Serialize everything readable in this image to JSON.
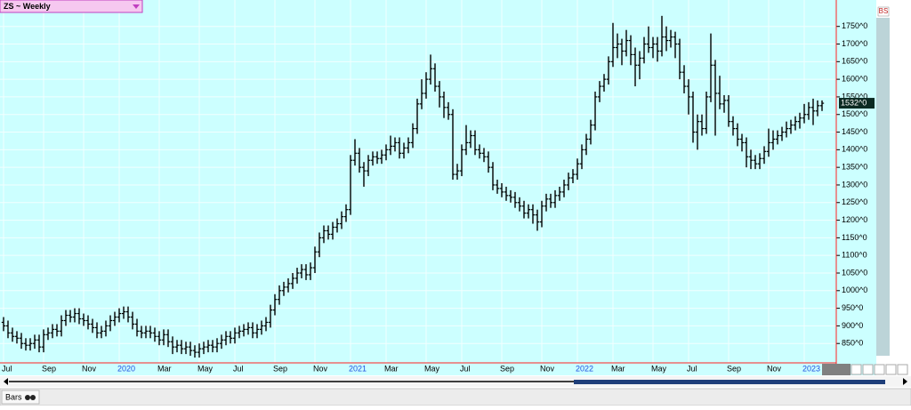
{
  "chart_data": {
    "type": "ohlc",
    "title": "ZS ~ Weekly",
    "color": "#000000",
    "background": "#ccffff",
    "grid": true,
    "grid_color": "#f2ffff",
    "axis_color": "#ff2020",
    "year_label_color": "#1f4fe0",
    "categories": [
      "Jul",
      null,
      null,
      null,
      null,
      null,
      null,
      null,
      null,
      "Sep",
      null,
      null,
      null,
      null,
      null,
      null,
      null,
      null,
      "Nov",
      null,
      null,
      null,
      null,
      null,
      null,
      null,
      "2020",
      null,
      null,
      null,
      null,
      null,
      null,
      null,
      null,
      "Mar",
      null,
      null,
      null,
      null,
      null,
      null,
      null,
      null,
      "May",
      null,
      null,
      null,
      null,
      null,
      null,
      null,
      "Jul",
      null,
      null,
      null,
      null,
      null,
      null,
      null,
      null,
      "Sep",
      null,
      null,
      null,
      null,
      null,
      null,
      null,
      null,
      "Nov",
      null,
      null,
      null,
      null,
      null,
      null,
      null,
      "2021",
      null,
      null,
      null,
      null,
      null,
      null,
      null,
      "Mar",
      null,
      null,
      null,
      null,
      null,
      null,
      null,
      null,
      "May",
      null,
      null,
      null,
      null,
      null,
      null,
      null,
      "Jul",
      null,
      null,
      null,
      null,
      null,
      null,
      null,
      null,
      "Sep",
      null,
      null,
      null,
      null,
      null,
      null,
      null,
      null,
      "Nov",
      null,
      null,
      null,
      null,
      null,
      null,
      null,
      "2022",
      null,
      null,
      null,
      null,
      null,
      null,
      null,
      "Mar",
      null,
      null,
      null,
      null,
      null,
      null,
      null,
      null,
      "May",
      null,
      null,
      null,
      null,
      null,
      null,
      null,
      "Jul",
      null,
      null,
      null,
      null,
      null,
      null,
      null,
      null,
      "Sep",
      null,
      null,
      null,
      null,
      null,
      null,
      null,
      null,
      "Nov",
      null,
      null,
      null,
      null,
      null,
      null,
      null,
      "2023",
      null,
      null,
      null,
      null
    ],
    "open": [
      910,
      900,
      880,
      870,
      865,
      850,
      845,
      850,
      860,
      840,
      875,
      880,
      890,
      885,
      915,
      930,
      925,
      935,
      920,
      915,
      905,
      895,
      880,
      885,
      900,
      915,
      925,
      935,
      940,
      925,
      905,
      885,
      880,
      885,
      880,
      870,
      860,
      875,
      855,
      840,
      845,
      835,
      840,
      830,
      825,
      835,
      840,
      845,
      840,
      850,
      860,
      870,
      865,
      880,
      885,
      890,
      895,
      880,
      890,
      900,
      910,
      945,
      975,
      1000,
      1010,
      1020,
      1035,
      1050,
      1060,
      1045,
      1065,
      1110,
      1150,
      1170,
      1160,
      1180,
      1190,
      1210,
      1230,
      1370,
      1390,
      1350,
      1340,
      1370,
      1380,
      1375,
      1385,
      1400,
      1410,
      1420,
      1390,
      1405,
      1420,
      1460,
      1530,
      1560,
      1600,
      1630,
      1580,
      1550,
      1520,
      1500,
      1330,
      1340,
      1400,
      1420,
      1440,
      1400,
      1390,
      1380,
      1350,
      1300,
      1290,
      1280,
      1270,
      1265,
      1250,
      1240,
      1220,
      1230,
      1215,
      1195,
      1240,
      1260,
      1250,
      1270,
      1280,
      1300,
      1320,
      1330,
      1360,
      1400,
      1430,
      1470,
      1550,
      1580,
      1600,
      1650,
      1690,
      1700,
      1680,
      1710,
      1670,
      1640,
      1660,
      1700,
      1690,
      1700,
      1680,
      1720,
      1710,
      1720,
      1700,
      1620,
      1580,
      1550,
      1450,
      1480,
      1460,
      1550,
      1640,
      1560,
      1530,
      1540,
      1480,
      1460,
      1430,
      1420,
      1380,
      1370,
      1360,
      1375,
      1395,
      1420,
      1430,
      1440,
      1450,
      1460,
      1470,
      1480,
      1490,
      1500,
      1520,
      1510,
      1525
    ],
    "high": [
      925,
      915,
      895,
      885,
      880,
      865,
      865,
      875,
      875,
      890,
      895,
      905,
      905,
      930,
      945,
      945,
      950,
      950,
      935,
      930,
      920,
      910,
      900,
      915,
      930,
      940,
      950,
      955,
      955,
      940,
      920,
      900,
      900,
      900,
      895,
      885,
      890,
      890,
      870,
      860,
      860,
      855,
      855,
      845,
      850,
      855,
      860,
      860,
      865,
      875,
      885,
      885,
      895,
      900,
      905,
      910,
      910,
      905,
      915,
      925,
      960,
      990,
      1015,
      1025,
      1035,
      1050,
      1065,
      1075,
      1075,
      1080,
      1125,
      1165,
      1185,
      1185,
      1195,
      1205,
      1225,
      1245,
      1385,
      1430,
      1405,
      1365,
      1385,
      1395,
      1395,
      1400,
      1415,
      1440,
      1435,
      1435,
      1420,
      1435,
      1475,
      1545,
      1600,
      1620,
      1670,
      1645,
      1595,
      1565,
      1535,
      1515,
      1360,
      1415,
      1470,
      1455,
      1455,
      1415,
      1405,
      1395,
      1365,
      1315,
      1305,
      1295,
      1285,
      1280,
      1265,
      1255,
      1245,
      1245,
      1230,
      1255,
      1275,
      1275,
      1285,
      1295,
      1315,
      1335,
      1345,
      1375,
      1415,
      1445,
      1485,
      1565,
      1595,
      1615,
      1665,
      1760,
      1730,
      1715,
      1740,
      1725,
      1690,
      1680,
      1720,
      1750,
      1720,
      1720,
      1780,
      1750,
      1740,
      1735,
      1715,
      1640,
      1600,
      1565,
      1500,
      1500,
      1565,
      1730,
      1655,
      1610,
      1555,
      1555,
      1495,
      1475,
      1445,
      1435,
      1400,
      1385,
      1390,
      1410,
      1460,
      1455,
      1455,
      1465,
      1480,
      1485,
      1495,
      1505,
      1530,
      1535,
      1545,
      1540,
      1540
    ],
    "low": [
      885,
      865,
      855,
      850,
      835,
      830,
      830,
      835,
      825,
      825,
      860,
      865,
      870,
      870,
      900,
      910,
      910,
      905,
      900,
      890,
      880,
      865,
      865,
      870,
      885,
      900,
      910,
      920,
      910,
      890,
      870,
      865,
      865,
      865,
      855,
      845,
      845,
      840,
      820,
      825,
      820,
      820,
      815,
      810,
      810,
      820,
      825,
      825,
      825,
      835,
      845,
      850,
      850,
      865,
      870,
      875,
      865,
      865,
      875,
      885,
      895,
      930,
      960,
      985,
      995,
      1005,
      1020,
      1035,
      1030,
      1030,
      1050,
      1095,
      1135,
      1145,
      1145,
      1165,
      1175,
      1195,
      1215,
      1355,
      1335,
      1295,
      1325,
      1355,
      1360,
      1360,
      1370,
      1385,
      1395,
      1375,
      1375,
      1390,
      1405,
      1445,
      1515,
      1545,
      1585,
      1565,
      1520,
      1490,
      1485,
      1315,
      1315,
      1325,
      1385,
      1405,
      1385,
      1375,
      1365,
      1335,
      1285,
      1275,
      1265,
      1255,
      1250,
      1235,
      1225,
      1205,
      1205,
      1190,
      1170,
      1180,
      1225,
      1235,
      1235,
      1255,
      1265,
      1285,
      1305,
      1315,
      1345,
      1385,
      1415,
      1455,
      1535,
      1565,
      1585,
      1635,
      1660,
      1640,
      1665,
      1640,
      1580,
      1600,
      1645,
      1675,
      1660,
      1650,
      1665,
      1680,
      1690,
      1660,
      1600,
      1560,
      1500,
      1420,
      1400,
      1440,
      1445,
      1535,
      1440,
      1515,
      1505,
      1465,
      1440,
      1410,
      1395,
      1350,
      1345,
      1345,
      1345,
      1360,
      1380,
      1400,
      1415,
      1425,
      1435,
      1445,
      1455,
      1460,
      1475,
      1485,
      1470,
      1495,
      1510
    ],
    "close": [
      900,
      880,
      870,
      865,
      850,
      845,
      850,
      860,
      840,
      875,
      880,
      890,
      885,
      915,
      930,
      925,
      935,
      920,
      915,
      905,
      895,
      880,
      885,
      900,
      915,
      925,
      935,
      940,
      925,
      905,
      885,
      880,
      885,
      880,
      870,
      860,
      875,
      855,
      840,
      845,
      835,
      840,
      830,
      825,
      835,
      840,
      845,
      840,
      850,
      860,
      870,
      865,
      880,
      885,
      890,
      895,
      880,
      890,
      900,
      910,
      945,
      975,
      1000,
      1010,
      1020,
      1035,
      1050,
      1060,
      1045,
      1065,
      1110,
      1150,
      1170,
      1160,
      1180,
      1190,
      1210,
      1230,
      1370,
      1390,
      1350,
      1340,
      1370,
      1380,
      1375,
      1385,
      1400,
      1410,
      1420,
      1390,
      1405,
      1420,
      1460,
      1530,
      1560,
      1600,
      1630,
      1580,
      1550,
      1520,
      1500,
      1330,
      1340,
      1400,
      1420,
      1440,
      1400,
      1390,
      1380,
      1350,
      1300,
      1290,
      1280,
      1270,
      1265,
      1250,
      1240,
      1220,
      1230,
      1215,
      1195,
      1240,
      1260,
      1250,
      1270,
      1280,
      1300,
      1320,
      1330,
      1360,
      1400,
      1430,
      1470,
      1550,
      1580,
      1600,
      1650,
      1690,
      1700,
      1680,
      1710,
      1670,
      1640,
      1660,
      1700,
      1690,
      1700,
      1680,
      1720,
      1710,
      1720,
      1700,
      1620,
      1580,
      1550,
      1450,
      1480,
      1460,
      1550,
      1640,
      1560,
      1530,
      1540,
      1480,
      1460,
      1430,
      1420,
      1380,
      1370,
      1360,
      1375,
      1395,
      1420,
      1430,
      1440,
      1450,
      1460,
      1470,
      1480,
      1490,
      1500,
      1520,
      1510,
      1525,
      1532
    ],
    "last_close_label": "1532^0",
    "ylim": [
      795,
      1825
    ],
    "yticks": [
      {
        "value": 850,
        "label": "850^0"
      },
      {
        "value": 900,
        "label": "900^0"
      },
      {
        "value": 950,
        "label": "950^0"
      },
      {
        "value": 1000,
        "label": "1000^0"
      },
      {
        "value": 1050,
        "label": "1050^0"
      },
      {
        "value": 1100,
        "label": "1100^0"
      },
      {
        "value": 1150,
        "label": "1150^0"
      },
      {
        "value": 1200,
        "label": "1200^0"
      },
      {
        "value": 1250,
        "label": "1250^0"
      },
      {
        "value": 1300,
        "label": "1300^0"
      },
      {
        "value": 1350,
        "label": "1350^0"
      },
      {
        "value": 1400,
        "label": "1400^0"
      },
      {
        "value": 1450,
        "label": "1450^0"
      },
      {
        "value": 1500,
        "label": "1500^0"
      },
      {
        "value": 1550,
        "label": "1550^0"
      },
      {
        "value": 1600,
        "label": "1600^0"
      },
      {
        "value": 1650,
        "label": "1650^0"
      },
      {
        "value": 1700,
        "label": "1700^0"
      },
      {
        "value": 1750,
        "label": "1750^0"
      }
    ]
  },
  "ui": {
    "tab": "Bars",
    "corner_label": "BS"
  }
}
